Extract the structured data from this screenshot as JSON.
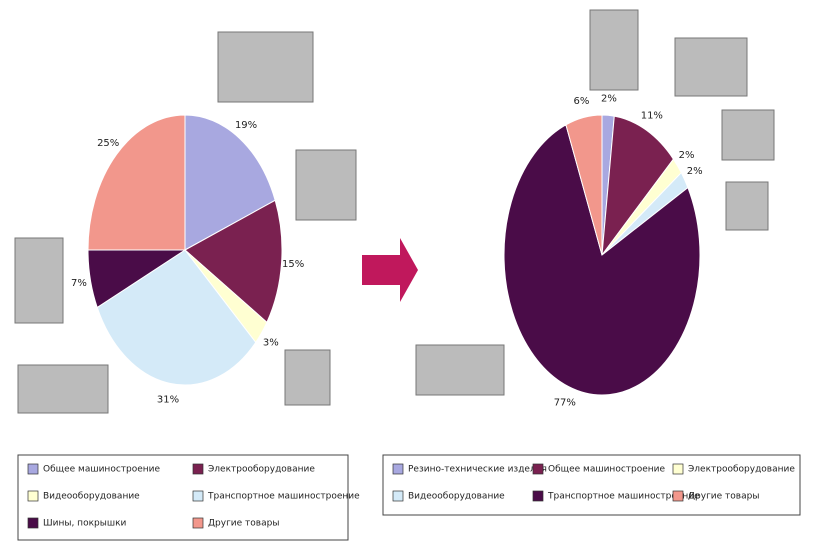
{
  "chart_data": [
    {
      "type": "pie",
      "categories": [
        "Общее машиностроение",
        "Электрооборудование",
        "Видеооборудование",
        "Транспортное машиностроение",
        "Шины, покрышки",
        "Другие товары"
      ],
      "values": [
        19,
        15,
        3,
        31,
        7,
        25
      ],
      "value_labels": [
        "19%",
        "15%",
        "3%",
        "31%",
        "7%",
        "25%"
      ],
      "colors": [
        "#a8a8e0",
        "#7a2150",
        "#ffffd2",
        "#d4eaf8",
        "#4a0c48",
        "#f2978c"
      ]
    },
    {
      "type": "pie",
      "categories": [
        "Резино-технические изделия",
        "Общее машиностроение",
        "Электрооборудование",
        "Видеооборудование",
        "Транспортное машиностроение",
        "Другие товары"
      ],
      "values": [
        2,
        11,
        2,
        2,
        77,
        6
      ],
      "value_labels": [
        "2%",
        "11%",
        "2%",
        "2%",
        "77%",
        "6%"
      ],
      "colors": [
        "#a8a8e0",
        "#7a2150",
        "#ffffd2",
        "#d4eaf8",
        "#4a0c48",
        "#f2978c"
      ]
    }
  ]
}
